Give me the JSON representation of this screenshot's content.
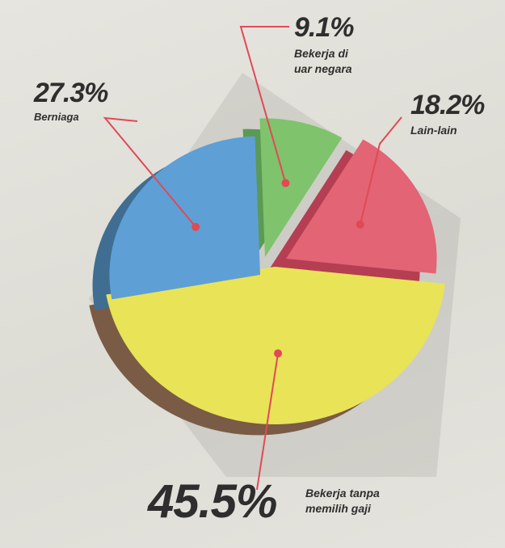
{
  "chart_data": {
    "type": "pie",
    "title": "",
    "slices": [
      {
        "label_lines": [
          "Bekerja tanpa",
          "memilih gaji"
        ],
        "percent_text": "45.5%",
        "value": 45.5,
        "color": "#e9e357",
        "side_color": "#7a5b46"
      },
      {
        "label_lines": [
          "Berniaga"
        ],
        "percent_text": "27.3%",
        "value": 27.3,
        "color": "#5e9fd6",
        "side_color": "#3f6e92"
      },
      {
        "label_lines": [
          "Bekerja di",
          "uar negara"
        ],
        "percent_text": "9.1%",
        "value": 9.1,
        "color": "#7fc36c",
        "side_color": "#5a9a55"
      },
      {
        "label_lines": [
          "Lain-lain"
        ],
        "percent_text": "18.2%",
        "value": 18.2,
        "color": "#e36474",
        "side_color": "#b53e53"
      }
    ],
    "leader_color": "#e04a55"
  }
}
